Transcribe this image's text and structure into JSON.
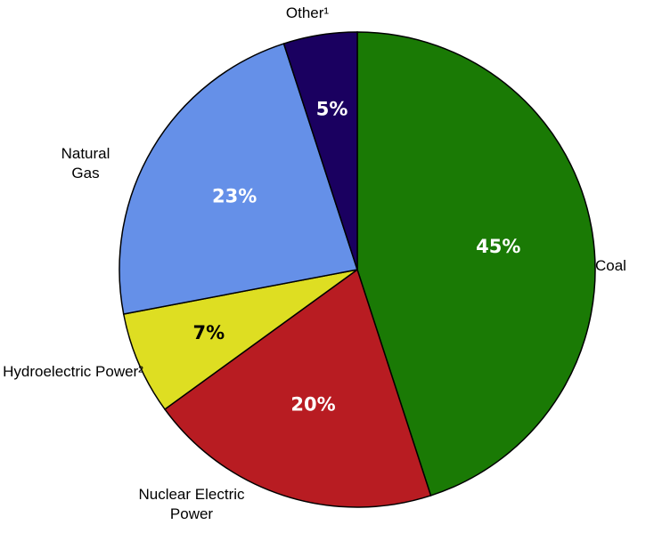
{
  "chart_data": {
    "type": "pie",
    "categories": [
      "Coal",
      "Nuclear Electric Power",
      "Hydroelectric Power²",
      "Natural Gas",
      "Other¹"
    ],
    "values": [
      45,
      20,
      7,
      23,
      5
    ],
    "value_labels": [
      "45%",
      "20%",
      "7%",
      "23%",
      "5%"
    ],
    "colors": [
      "#1a7a05",
      "#b81c22",
      "#dede22",
      "#6590e8",
      "#1a0060"
    ],
    "start_angle": 0,
    "direction": "clockwise"
  }
}
